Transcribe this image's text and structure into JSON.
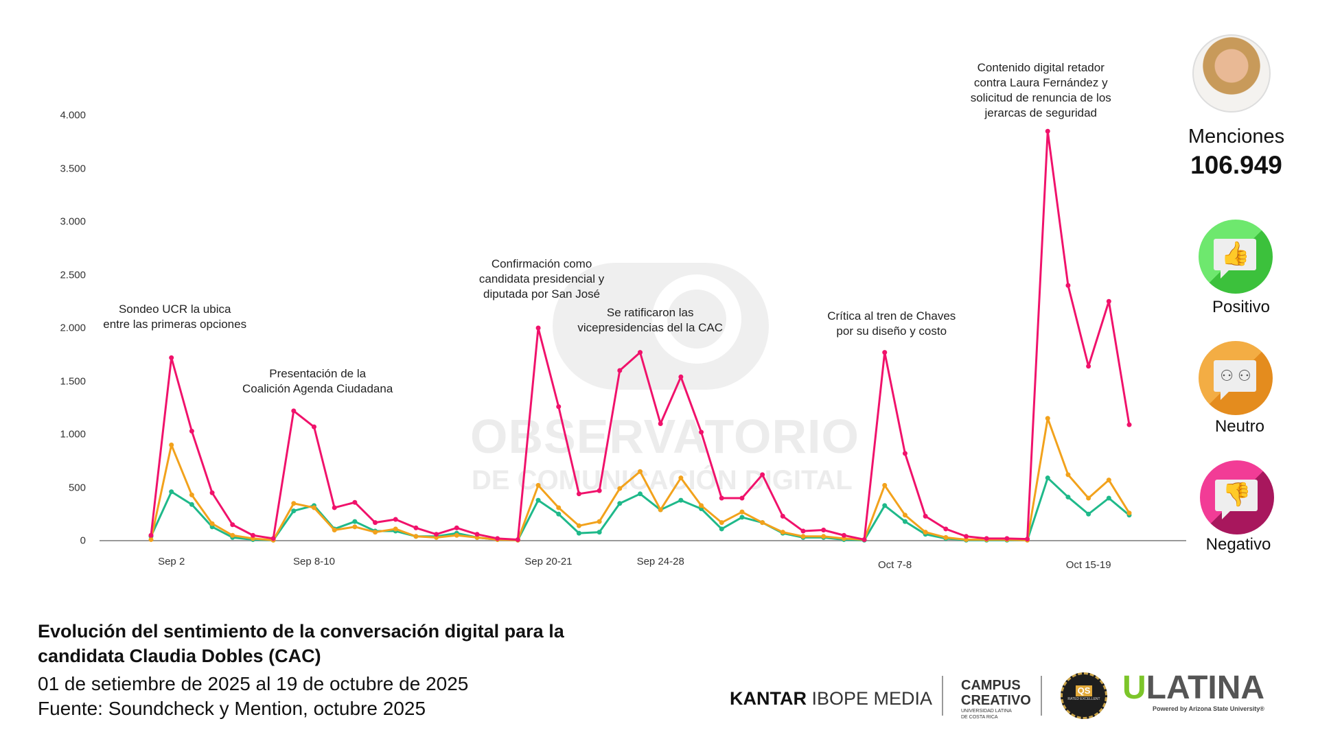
{
  "chart_data": {
    "type": "line",
    "title": "Evolución del sentimiento de la conversación digital para la candidata Claudia Dobles (CAC)",
    "x": [
      "Sep 1",
      "Sep 2",
      "Sep 3",
      "Sep 4",
      "Sep 5",
      "Sep 6",
      "Sep 7",
      "Sep 8",
      "Sep 9",
      "Sep 10",
      "Sep 11",
      "Sep 12",
      "Sep 13",
      "Sep 14",
      "Sep 15",
      "Sep 16",
      "Sep 17",
      "Sep 18",
      "Sep 19",
      "Sep 20",
      "Sep 21",
      "Sep 22",
      "Sep 23",
      "Sep 24",
      "Sep 25",
      "Sep 26",
      "Sep 27",
      "Sep 28",
      "Sep 29",
      "Sep 30",
      "Oct 1",
      "Oct 2",
      "Oct 3",
      "Oct 4",
      "Oct 5",
      "Oct 6",
      "Oct 7",
      "Oct 8",
      "Oct 9",
      "Oct 10",
      "Oct 11",
      "Oct 12",
      "Oct 13",
      "Oct 14",
      "Oct 15",
      "Oct 16",
      "Oct 17",
      "Oct 18",
      "Oct 19"
    ],
    "x_tick_labels": [
      {
        "index": 1,
        "label": "Sep 2"
      },
      {
        "index": 8,
        "label": "Sep 8-10"
      },
      {
        "index": 19.5,
        "label": "Sep 20-21"
      },
      {
        "index": 25,
        "label": "Sep 24-28"
      },
      {
        "index": 36.5,
        "label": "Oct  7-8"
      },
      {
        "index": 46,
        "label": "Oct  15-19"
      }
    ],
    "yticks": [
      {
        "v": 0,
        "label": "0"
      },
      {
        "v": 500,
        "label": "500"
      },
      {
        "v": 1000,
        "label": "1.000"
      },
      {
        "v": 1500,
        "label": "1.500"
      },
      {
        "v": 2000,
        "label": "2.000"
      },
      {
        "v": 2500,
        "label": "2.500"
      },
      {
        "v": 3000,
        "label": "3.000"
      },
      {
        "v": 3500,
        "label": "3.500"
      },
      {
        "v": 4000,
        "label": "4.000"
      }
    ],
    "ylim": [
      0,
      4000
    ],
    "grid": false,
    "series": [
      {
        "name": "Negativo",
        "color": "#f0126b",
        "values": [
          50,
          1720,
          1030,
          450,
          150,
          50,
          20,
          1220,
          1070,
          310,
          360,
          170,
          200,
          120,
          60,
          120,
          60,
          20,
          10,
          2000,
          1260,
          440,
          470,
          1600,
          1770,
          1100,
          1540,
          1020,
          400,
          400,
          620,
          230,
          90,
          100,
          50,
          10,
          1770,
          820,
          230,
          110,
          40,
          20,
          20,
          15,
          3850,
          2400,
          1640,
          2250,
          1090
        ]
      },
      {
        "name": "Neutro",
        "color": "#f2a21c",
        "values": [
          10,
          900,
          430,
          160,
          50,
          20,
          5,
          350,
          310,
          100,
          130,
          80,
          110,
          40,
          30,
          50,
          30,
          10,
          5,
          520,
          310,
          140,
          180,
          490,
          650,
          290,
          590,
          330,
          170,
          270,
          170,
          80,
          40,
          40,
          20,
          10,
          520,
          240,
          80,
          30,
          10,
          10,
          10,
          5,
          1150,
          620,
          400,
          570,
          260
        ]
      },
      {
        "name": "Positivo",
        "color": "#1fb98a",
        "values": [
          40,
          460,
          340,
          130,
          30,
          10,
          5,
          280,
          330,
          110,
          180,
          90,
          90,
          40,
          40,
          70,
          30,
          10,
          5,
          380,
          250,
          70,
          80,
          350,
          440,
          290,
          380,
          300,
          110,
          220,
          170,
          70,
          30,
          30,
          10,
          5,
          330,
          180,
          60,
          20,
          5,
          5,
          5,
          5,
          590,
          410,
          250,
          400,
          240
        ]
      }
    ],
    "annotations": [
      {
        "index": 1,
        "text": [
          "Sondeo UCR la ubica",
          "entre las primeras opciones"
        ]
      },
      {
        "index": 7.5,
        "text": [
          "Presentación de la",
          "Coalición Agenda Ciudadana"
        ]
      },
      {
        "index": 19,
        "text": [
          "Confirmación como",
          "candidata presidencial y",
          "diputada por San José"
        ]
      },
      {
        "index": 25,
        "text": [
          "Se ratificaron las",
          "vicepresidencias del la CAC"
        ]
      },
      {
        "index": 36,
        "text": [
          "Crítica al tren de Chaves",
          "por su diseño y costo"
        ]
      },
      {
        "index": 44,
        "text": [
          "Contenido digital retador",
          "contra Laura Fernández y",
          "solicitud de renuncia de los",
          "jerarcas de seguridad"
        ]
      }
    ]
  },
  "watermark": {
    "line1": "OBSERVATORIO",
    "line2": "DE COMUNICACIÓN DIGITAL"
  },
  "mentions": {
    "label": "Menciones",
    "value": "106.949"
  },
  "legend": {
    "positive": "Positivo",
    "neutral": "Neutro",
    "negative": "Negativo"
  },
  "footer": {
    "title_line1": "Evolución del sentimiento de la conversación digital para la",
    "title_line2": "candidata Claudia Dobles (CAC)",
    "date_range": "01 de setiembre de 2025 al 19 de octubre de 2025",
    "source": "Fuente: Soundcheck y Mention, octubre 2025"
  },
  "logos": {
    "kantar_bold": "KANTAR",
    "kantar_light": "IBOPE MEDIA",
    "campus1": "CAMPUS",
    "campus2": "CREATIVO",
    "campus3": "UNIVERSIDAD LATINA",
    "campus4": "DE COSTA RICA",
    "qs": "QS",
    "qs_rated": "RATED EXCELLENT",
    "ulatina_u": "U",
    "ulatina": "LATINA",
    "ulatina_sub": "Powered by Arizona State University®"
  }
}
